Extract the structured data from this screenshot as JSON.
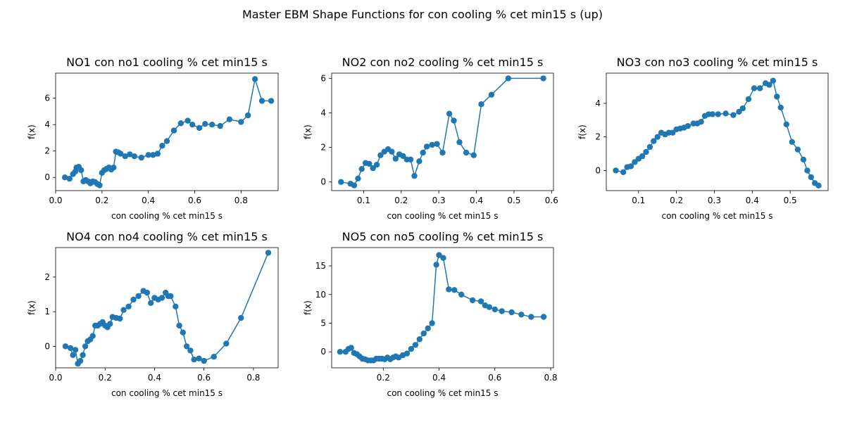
{
  "figure": {
    "suptitle": "Master EBM Shape Functions for con  cooling % cet min15 s (up)",
    "line_color": "#1f77b4"
  },
  "chart_data": [
    {
      "type": "line",
      "title": "NO1 con no1 cooling % cet min15 s",
      "xlabel": "con  cooling % cet min15 s",
      "ylabel": "f(x)",
      "xlim": [
        0.0,
        0.96
      ],
      "ylim": [
        -1.0,
        7.9
      ],
      "xticks": [
        0.0,
        0.2,
        0.4,
        0.6,
        0.8
      ],
      "xtick_labels": [
        "0.0",
        "0.2",
        "0.4",
        "0.6",
        "0.8"
      ],
      "yticks": [
        0,
        2,
        4,
        6
      ],
      "ytick_labels": [
        "0",
        "2",
        "4",
        "6"
      ],
      "series": [
        {
          "x": [
            0.04,
            0.06,
            0.075,
            0.085,
            0.09,
            0.1,
            0.11,
            0.12,
            0.13,
            0.14,
            0.15,
            0.16,
            0.17,
            0.18,
            0.19,
            0.2,
            0.21,
            0.22,
            0.23,
            0.24,
            0.25,
            0.26,
            0.27,
            0.28,
            0.3,
            0.32,
            0.34,
            0.37,
            0.4,
            0.42,
            0.44,
            0.46,
            0.48,
            0.51,
            0.54,
            0.57,
            0.59,
            0.62,
            0.645,
            0.675,
            0.71,
            0.75,
            0.8,
            0.83,
            0.86,
            0.89,
            0.93
          ],
          "y": [
            0.0,
            -0.1,
            0.25,
            0.45,
            0.75,
            0.8,
            0.55,
            -0.3,
            -0.2,
            -0.3,
            -0.45,
            -0.3,
            -0.35,
            -0.5,
            -0.6,
            0.35,
            0.55,
            0.65,
            0.75,
            0.6,
            0.75,
            1.95,
            1.9,
            1.8,
            1.6,
            1.75,
            1.6,
            1.5,
            1.7,
            1.7,
            1.8,
            2.4,
            2.75,
            3.55,
            4.1,
            4.3,
            4.0,
            3.75,
            4.05,
            4.0,
            3.9,
            4.4,
            4.2,
            4.7,
            7.45,
            5.8,
            5.8
          ]
        }
      ]
    },
    {
      "type": "line",
      "title": "NO2 con no2 cooling % cet min15 s",
      "xlabel": "con  cooling % cet min15 s",
      "ylabel": "f(x)",
      "xlim": [
        0.015,
        0.605
      ],
      "ylim": [
        -0.5,
        6.3
      ],
      "xticks": [
        0.1,
        0.2,
        0.3,
        0.4,
        0.5,
        0.6
      ],
      "xtick_labels": [
        "0.1",
        "0.2",
        "0.3",
        "0.4",
        "0.5",
        "0.6"
      ],
      "yticks": [
        0,
        2,
        4,
        6
      ],
      "ytick_labels": [
        "0",
        "2",
        "4",
        "6"
      ],
      "series": [
        {
          "x": [
            0.04,
            0.065,
            0.075,
            0.085,
            0.095,
            0.105,
            0.115,
            0.125,
            0.135,
            0.145,
            0.155,
            0.165,
            0.175,
            0.185,
            0.195,
            0.205,
            0.215,
            0.225,
            0.235,
            0.248,
            0.258,
            0.268,
            0.282,
            0.295,
            0.31,
            0.328,
            0.34,
            0.355,
            0.373,
            0.393,
            0.413,
            0.44,
            0.485,
            0.578
          ],
          "y": [
            0.0,
            -0.1,
            -0.2,
            0.2,
            0.75,
            1.1,
            1.05,
            0.8,
            1.0,
            1.55,
            1.75,
            1.9,
            1.75,
            1.35,
            1.6,
            1.5,
            1.3,
            1.3,
            0.35,
            1.2,
            1.7,
            2.05,
            2.15,
            2.2,
            1.7,
            3.95,
            3.55,
            2.3,
            1.7,
            1.55,
            4.5,
            5.05,
            6.0,
            6.0
          ]
        }
      ]
    },
    {
      "type": "line",
      "title": "NO3 con no3 cooling % cet min15 s",
      "xlabel": "con  cooling % cet min15 s",
      "ylabel": "f(x)",
      "xlim": [
        0.015,
        0.6
      ],
      "ylim": [
        -1.2,
        5.8
      ],
      "xticks": [
        0.1,
        0.2,
        0.3,
        0.4,
        0.5
      ],
      "xtick_labels": [
        "0.1",
        "0.2",
        "0.3",
        "0.4",
        "0.5"
      ],
      "yticks": [
        0,
        2,
        4
      ],
      "ytick_labels": [
        "0",
        "2",
        "4"
      ],
      "series": [
        {
          "x": [
            0.04,
            0.06,
            0.07,
            0.08,
            0.09,
            0.1,
            0.11,
            0.12,
            0.13,
            0.14,
            0.15,
            0.16,
            0.17,
            0.18,
            0.19,
            0.2,
            0.21,
            0.22,
            0.23,
            0.245,
            0.255,
            0.265,
            0.275,
            0.285,
            0.295,
            0.31,
            0.33,
            0.35,
            0.365,
            0.375,
            0.39,
            0.405,
            0.42,
            0.435,
            0.445,
            0.455,
            0.465,
            0.475,
            0.49,
            0.505,
            0.52,
            0.535,
            0.545,
            0.555,
            0.565,
            0.575
          ],
          "y": [
            0.0,
            -0.1,
            0.2,
            0.25,
            0.5,
            0.7,
            0.85,
            1.1,
            1.4,
            1.75,
            2.0,
            2.25,
            2.15,
            2.25,
            2.25,
            2.45,
            2.5,
            2.55,
            2.65,
            2.8,
            2.8,
            2.9,
            3.25,
            3.35,
            3.35,
            3.35,
            3.4,
            3.3,
            3.5,
            3.7,
            4.25,
            4.9,
            4.9,
            5.2,
            5.1,
            5.35,
            4.4,
            3.75,
            2.75,
            1.7,
            1.25,
            0.65,
            0.0,
            -0.4,
            -0.75,
            -0.9
          ]
        }
      ]
    },
    {
      "type": "line",
      "title": "NO4 con no4 cooling % cet min15 s",
      "xlabel": "con  cooling % cet min15 s",
      "ylabel": "f(x)",
      "xlim": [
        0.0,
        0.9
      ],
      "ylim": [
        -0.62,
        2.85
      ],
      "xticks": [
        0.0,
        0.2,
        0.4,
        0.6,
        0.8
      ],
      "xtick_labels": [
        "0.0",
        "0.2",
        "0.4",
        "0.6",
        "0.8"
      ],
      "yticks": [
        0,
        1,
        2
      ],
      "ytick_labels": [
        "0",
        "1",
        "2"
      ],
      "series": [
        {
          "x": [
            0.04,
            0.06,
            0.07,
            0.08,
            0.09,
            0.1,
            0.11,
            0.12,
            0.13,
            0.14,
            0.15,
            0.16,
            0.17,
            0.18,
            0.19,
            0.2,
            0.21,
            0.22,
            0.23,
            0.245,
            0.26,
            0.275,
            0.295,
            0.315,
            0.335,
            0.355,
            0.37,
            0.385,
            0.4,
            0.415,
            0.43,
            0.445,
            0.455,
            0.465,
            0.485,
            0.5,
            0.515,
            0.53,
            0.545,
            0.56,
            0.58,
            0.6,
            0.64,
            0.69,
            0.75,
            0.86
          ],
          "y": [
            0.0,
            -0.05,
            -0.25,
            -0.1,
            -0.5,
            -0.42,
            -0.25,
            0.0,
            0.15,
            0.2,
            0.3,
            0.6,
            0.6,
            0.65,
            0.7,
            0.6,
            0.55,
            0.65,
            0.85,
            0.82,
            0.8,
            1.05,
            1.15,
            1.35,
            1.45,
            1.6,
            1.55,
            1.25,
            1.4,
            1.35,
            1.4,
            1.55,
            1.45,
            1.45,
            1.15,
            0.6,
            0.4,
            0.0,
            -0.12,
            -0.38,
            -0.35,
            -0.42,
            -0.3,
            0.08,
            0.82,
            2.7
          ]
        }
      ]
    },
    {
      "type": "line",
      "title": "NO5 con no5 cooling % cet min15 s",
      "xlabel": "con  cooling % cet min15 s",
      "ylabel": "f(x)",
      "xlim": [
        0.015,
        0.81
      ],
      "ylim": [
        -2.8,
        18.2
      ],
      "xticks": [
        0.2,
        0.4,
        0.6,
        0.8
      ],
      "xtick_labels": [
        "0.2",
        "0.4",
        "0.6",
        "0.8"
      ],
      "yticks": [
        0,
        5,
        10,
        15
      ],
      "ytick_labels": [
        "0",
        "5",
        "10",
        "15"
      ],
      "series": [
        {
          "x": [
            0.045,
            0.065,
            0.075,
            0.085,
            0.095,
            0.105,
            0.115,
            0.125,
            0.135,
            0.145,
            0.155,
            0.165,
            0.175,
            0.185,
            0.195,
            0.205,
            0.215,
            0.225,
            0.235,
            0.245,
            0.255,
            0.27,
            0.285,
            0.3,
            0.315,
            0.33,
            0.345,
            0.36,
            0.375,
            0.39,
            0.4,
            0.415,
            0.435,
            0.455,
            0.48,
            0.52,
            0.55,
            0.565,
            0.58,
            0.6,
            0.625,
            0.66,
            0.695,
            0.73,
            0.775
          ],
          "y": [
            0.0,
            0.0,
            0.5,
            0.7,
            -0.2,
            -0.4,
            -0.8,
            -1.2,
            -1.3,
            -1.5,
            -1.5,
            -1.5,
            -1.2,
            -1.2,
            -1.2,
            -1.3,
            -1.0,
            -1.3,
            -1.0,
            -0.8,
            -1.0,
            -0.6,
            -0.3,
            0.5,
            1.2,
            2.2,
            3.2,
            4.1,
            5.0,
            15.2,
            16.9,
            16.4,
            10.9,
            10.8,
            10.0,
            9.0,
            8.8,
            8.1,
            7.8,
            7.4,
            7.1,
            6.9,
            6.5,
            6.1,
            6.1
          ]
        }
      ]
    }
  ]
}
